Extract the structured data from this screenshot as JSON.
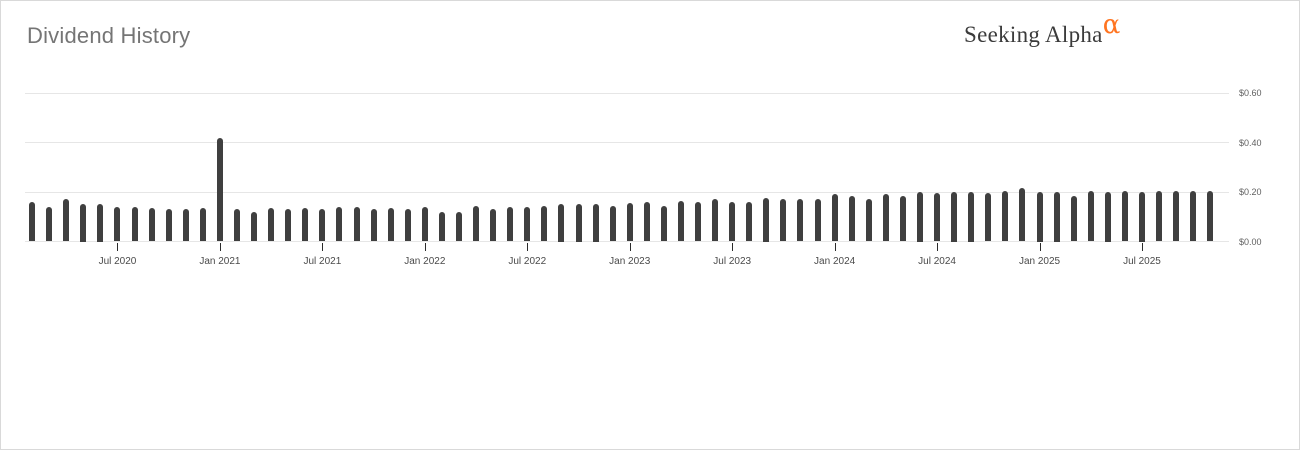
{
  "header": {
    "title": "Dividend History",
    "logo_text": "Seeking Alpha",
    "logo_alpha": "α"
  },
  "colors": {
    "bar": "#3f3f3f",
    "grid": "#e6e6e6",
    "axis_label": "#5f5f5f",
    "x_label": "#4a4a4a",
    "tick_mark": "#2b2b2b",
    "title": "#757575",
    "logo_text": "#3b3b3b",
    "logo_alpha": "#ff7420",
    "card_border": "#d9d9d9"
  },
  "chart_data": {
    "type": "bar",
    "title": "Dividend History",
    "xlabel": "",
    "ylabel": "",
    "ylim": [
      0,
      0.6
    ],
    "grid": true,
    "legend": false,
    "y_axis_side": "right",
    "y_ticks": [
      0,
      0.2,
      0.4,
      0.6
    ],
    "y_tick_labels": [
      "$0.00",
      "$0.20",
      "$0.40",
      "$0.60"
    ],
    "x_tick_labels": [
      "Jul 2020",
      "Jan 2021",
      "Jul 2021",
      "Jan 2022",
      "Jul 2022",
      "Jan 2023",
      "Jul 2023",
      "Jan 2024",
      "Jul 2024",
      "Jan 2025",
      "Jul 2025"
    ],
    "categories": [
      "Feb 2020",
      "Mar 2020",
      "Apr 2020",
      "May 2020",
      "Jun 2020",
      "Jul 2020",
      "Aug 2020",
      "Sep 2020",
      "Oct 2020",
      "Nov 2020",
      "Dec 2020",
      "Jan 2021",
      "Feb 2021",
      "Mar 2021",
      "Apr 2021",
      "May 2021",
      "Jun 2021",
      "Jul 2021",
      "Aug 2021",
      "Sep 2021",
      "Oct 2021",
      "Nov 2021",
      "Dec 2021",
      "Jan 2022",
      "Feb 2022",
      "Mar 2022",
      "Apr 2022",
      "May 2022",
      "Jun 2022",
      "Jul 2022",
      "Aug 2022",
      "Sep 2022",
      "Oct 2022",
      "Nov 2022",
      "Dec 2022",
      "Jan 2023",
      "Feb 2023",
      "Mar 2023",
      "Apr 2023",
      "May 2023",
      "Jun 2023",
      "Jul 2023",
      "Aug 2023",
      "Sep 2023",
      "Oct 2023",
      "Nov 2023",
      "Dec 2023",
      "Jan 2024",
      "Feb 2024",
      "Mar 2024",
      "Apr 2024",
      "May 2024",
      "Jun 2024",
      "Jul 2024",
      "Aug 2024",
      "Sep 2024",
      "Oct 2024",
      "Nov 2024",
      "Dec 2024",
      "Jan 2025",
      "Feb 2025",
      "Mar 2025",
      "Apr 2025",
      "May 2025",
      "Jun 2025",
      "Jul 2025",
      "Aug 2025",
      "Sep 2025",
      "Oct 2025",
      "Nov 2025"
    ],
    "values": [
      0.16,
      0.14,
      0.17,
      0.15,
      0.15,
      0.14,
      0.14,
      0.135,
      0.13,
      0.13,
      0.135,
      0.42,
      0.13,
      0.12,
      0.135,
      0.13,
      0.135,
      0.13,
      0.14,
      0.14,
      0.13,
      0.135,
      0.13,
      0.14,
      0.12,
      0.12,
      0.145,
      0.13,
      0.14,
      0.14,
      0.145,
      0.15,
      0.15,
      0.15,
      0.145,
      0.155,
      0.16,
      0.145,
      0.165,
      0.16,
      0.17,
      0.16,
      0.16,
      0.175,
      0.17,
      0.17,
      0.17,
      0.19,
      0.185,
      0.17,
      0.19,
      0.185,
      0.2,
      0.195,
      0.2,
      0.2,
      0.195,
      0.205,
      0.215,
      0.2,
      0.2,
      0.185,
      0.205,
      0.2,
      0.205,
      0.2,
      0.205,
      0.205,
      0.205,
      0.205
    ]
  }
}
